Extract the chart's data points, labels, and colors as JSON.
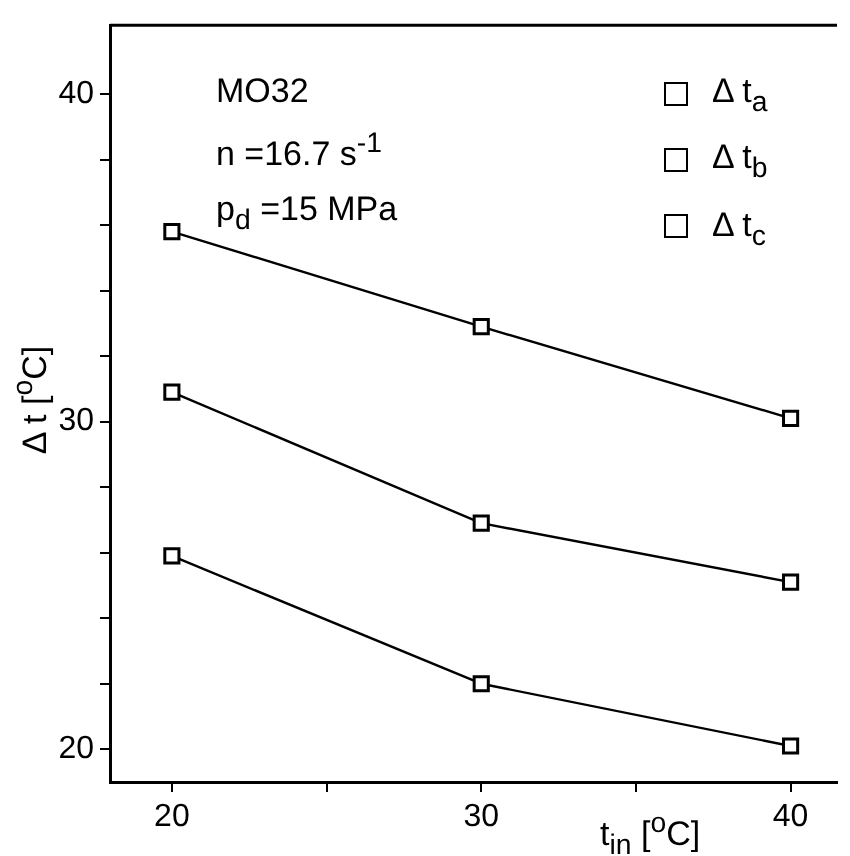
{
  "chart_data": {
    "type": "line",
    "xlabel": "t$_{in}$ [$^{o}$C]",
    "ylabel": "Δ t [$^{o}$C]",
    "x": [
      20,
      30,
      40
    ],
    "series": [
      {
        "name": "Δ t$_{a}$",
        "color": "#000000",
        "values": [
          35.8,
          32.9,
          30.1
        ]
      },
      {
        "name": "Δ t$_{b}$",
        "color": "#000000",
        "values": [
          30.9,
          26.9,
          25.1
        ]
      },
      {
        "name": "Δ t$_{c}$",
        "color": "#000000",
        "values": [
          25.9,
          22.0,
          20.1
        ]
      }
    ],
    "xlim": [
      18,
      41.5
    ],
    "xticks": [
      20,
      {
        "value": 25,
        "label": null
      },
      30,
      {
        "value": 35,
        "label": null
      },
      40
    ],
    "ylim": [
      19,
      42.1
    ],
    "yticks": [
      20,
      {
        "value": 22,
        "label": null
      },
      {
        "value": 24,
        "label": null
      },
      {
        "value": 26,
        "label": null
      },
      {
        "value": 28,
        "label": null
      },
      30,
      {
        "value": 32,
        "label": null
      },
      {
        "value": 34,
        "label": null
      },
      {
        "value": 36,
        "label": null
      },
      {
        "value": 38,
        "label": null
      },
      40
    ],
    "annotations": [
      "MO32",
      "n =16.7 s$^{-1}$",
      "p$_{d}$ =15 MPa"
    ],
    "legend": "top right",
    "marker": "square",
    "line_style": "solid",
    "grid": false
  }
}
